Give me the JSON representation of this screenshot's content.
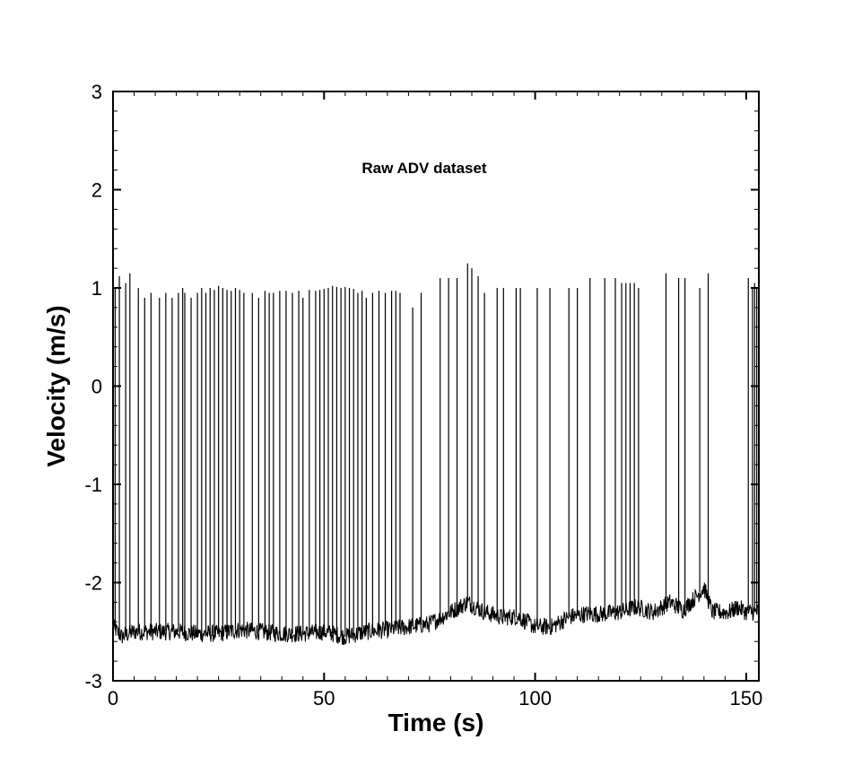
{
  "chart_data": {
    "type": "line",
    "title": "",
    "annotation": "Raw ADV dataset",
    "xlabel": "Time (s)",
    "ylabel": "Velocity (m/s)",
    "xlim": [
      0,
      153
    ],
    "ylim": [
      -3,
      3
    ],
    "xticks": [
      0,
      50,
      100,
      150
    ],
    "yticks": [
      -3,
      -2,
      -1,
      0,
      1,
      2,
      3
    ],
    "x_minor_step": 5,
    "y_minor_step": 0.2,
    "grid": false,
    "line_color": "#000000",
    "series": [
      {
        "baseline": [
          [
            0,
            -2.45
          ],
          [
            2,
            -2.55
          ],
          [
            5,
            -2.5
          ],
          [
            10,
            -2.5
          ],
          [
            15,
            -2.5
          ],
          [
            20,
            -2.52
          ],
          [
            25,
            -2.52
          ],
          [
            30,
            -2.48
          ],
          [
            35,
            -2.5
          ],
          [
            40,
            -2.52
          ],
          [
            45,
            -2.52
          ],
          [
            50,
            -2.5
          ],
          [
            55,
            -2.55
          ],
          [
            60,
            -2.5
          ],
          [
            65,
            -2.48
          ],
          [
            70,
            -2.45
          ],
          [
            75,
            -2.42
          ],
          [
            80,
            -2.3
          ],
          [
            84,
            -2.2
          ],
          [
            88,
            -2.3
          ],
          [
            92,
            -2.35
          ],
          [
            96,
            -2.35
          ],
          [
            100,
            -2.45
          ],
          [
            104,
            -2.45
          ],
          [
            108,
            -2.35
          ],
          [
            112,
            -2.32
          ],
          [
            116,
            -2.32
          ],
          [
            120,
            -2.3
          ],
          [
            124,
            -2.25
          ],
          [
            128,
            -2.3
          ],
          [
            132,
            -2.2
          ],
          [
            135,
            -2.28
          ],
          [
            138,
            -2.15
          ],
          [
            140,
            -2.05
          ],
          [
            142,
            -2.3
          ],
          [
            146,
            -2.3
          ],
          [
            148,
            -2.25
          ],
          [
            150,
            -2.3
          ],
          [
            153,
            -2.3
          ]
        ],
        "spikes": [
          {
            "x": 0.5,
            "y": 1.0
          },
          {
            "x": 1.5,
            "y": 1.12
          },
          {
            "x": 3.0,
            "y": 1.05
          },
          {
            "x": 4.0,
            "y": 1.15
          },
          {
            "x": 6.0,
            "y": 1.0
          },
          {
            "x": 7.5,
            "y": 0.9
          },
          {
            "x": 9.0,
            "y": 0.95
          },
          {
            "x": 11.0,
            "y": 0.9
          },
          {
            "x": 12.5,
            "y": 0.95
          },
          {
            "x": 14.0,
            "y": 0.9
          },
          {
            "x": 15.5,
            "y": 0.95
          },
          {
            "x": 16.5,
            "y": 1.0
          },
          {
            "x": 17.0,
            "y": 0.95
          },
          {
            "x": 18.5,
            "y": 0.9
          },
          {
            "x": 20.0,
            "y": 0.95
          },
          {
            "x": 21.0,
            "y": 1.0
          },
          {
            "x": 22.0,
            "y": 0.95
          },
          {
            "x": 23.0,
            "y": 1.0
          },
          {
            "x": 24.0,
            "y": 0.98
          },
          {
            "x": 25.0,
            "y": 1.02
          },
          {
            "x": 26.0,
            "y": 1.0
          },
          {
            "x": 27.0,
            "y": 0.98
          },
          {
            "x": 28.0,
            "y": 0.97
          },
          {
            "x": 29.0,
            "y": 1.0
          },
          {
            "x": 30.0,
            "y": 0.98
          },
          {
            "x": 31.0,
            "y": 0.95
          },
          {
            "x": 33.0,
            "y": 0.95
          },
          {
            "x": 34.5,
            "y": 0.9
          },
          {
            "x": 36.0,
            "y": 0.97
          },
          {
            "x": 37.0,
            "y": 0.95
          },
          {
            "x": 38.0,
            "y": 0.95
          },
          {
            "x": 39.5,
            "y": 0.97
          },
          {
            "x": 41.0,
            "y": 0.97
          },
          {
            "x": 42.5,
            "y": 0.95
          },
          {
            "x": 44.0,
            "y": 0.97
          },
          {
            "x": 45.0,
            "y": 0.9
          },
          {
            "x": 46.5,
            "y": 0.98
          },
          {
            "x": 48.0,
            "y": 0.97
          },
          {
            "x": 49.0,
            "y": 0.98
          },
          {
            "x": 50.0,
            "y": 0.99
          },
          {
            "x": 51.0,
            "y": 1.0
          },
          {
            "x": 52.0,
            "y": 1.02
          },
          {
            "x": 53.0,
            "y": 1.01
          },
          {
            "x": 54.0,
            "y": 1.0
          },
          {
            "x": 55.0,
            "y": 1.01
          },
          {
            "x": 56.0,
            "y": 1.0
          },
          {
            "x": 57.0,
            "y": 0.99
          },
          {
            "x": 58.0,
            "y": 0.95
          },
          {
            "x": 59.0,
            "y": 0.97
          },
          {
            "x": 60.0,
            "y": 0.9
          },
          {
            "x": 61.5,
            "y": 0.95
          },
          {
            "x": 63.0,
            "y": 0.97
          },
          {
            "x": 64.5,
            "y": 0.95
          },
          {
            "x": 66.0,
            "y": 0.97
          },
          {
            "x": 67.0,
            "y": 0.97
          },
          {
            "x": 68.0,
            "y": 0.95
          },
          {
            "x": 71.0,
            "y": 0.8
          },
          {
            "x": 73.0,
            "y": 0.95
          },
          {
            "x": 77.5,
            "y": 1.1
          },
          {
            "x": 79.5,
            "y": 1.1
          },
          {
            "x": 81.5,
            "y": 1.1
          },
          {
            "x": 84.0,
            "y": 1.25
          },
          {
            "x": 85.0,
            "y": 1.2
          },
          {
            "x": 86.5,
            "y": 1.12
          },
          {
            "x": 88.0,
            "y": 0.95
          },
          {
            "x": 91.0,
            "y": 1.0
          },
          {
            "x": 92.5,
            "y": 1.0
          },
          {
            "x": 95.5,
            "y": 1.0
          },
          {
            "x": 96.5,
            "y": 1.0
          },
          {
            "x": 100.5,
            "y": 1.0
          },
          {
            "x": 103.5,
            "y": 1.0
          },
          {
            "x": 108.0,
            "y": 1.0
          },
          {
            "x": 110.0,
            "y": 1.0
          },
          {
            "x": 113.0,
            "y": 1.1
          },
          {
            "x": 116.5,
            "y": 1.1
          },
          {
            "x": 119.0,
            "y": 1.1
          },
          {
            "x": 120.5,
            "y": 1.05
          },
          {
            "x": 121.5,
            "y": 1.05
          },
          {
            "x": 122.5,
            "y": 1.05
          },
          {
            "x": 123.5,
            "y": 1.05
          },
          {
            "x": 124.5,
            "y": 1.0
          },
          {
            "x": 131.0,
            "y": 1.15
          },
          {
            "x": 134.0,
            "y": 1.1
          },
          {
            "x": 135.5,
            "y": 1.1
          },
          {
            "x": 139.0,
            "y": 1.0
          },
          {
            "x": 141.0,
            "y": 1.15
          },
          {
            "x": 150.5,
            "y": 1.1
          },
          {
            "x": 151.5,
            "y": 1.0
          },
          {
            "x": 152.0,
            "y": 1.05
          },
          {
            "x": 152.5,
            "y": 1.0
          },
          {
            "x": 153.0,
            "y": 0.95
          }
        ]
      }
    ]
  }
}
